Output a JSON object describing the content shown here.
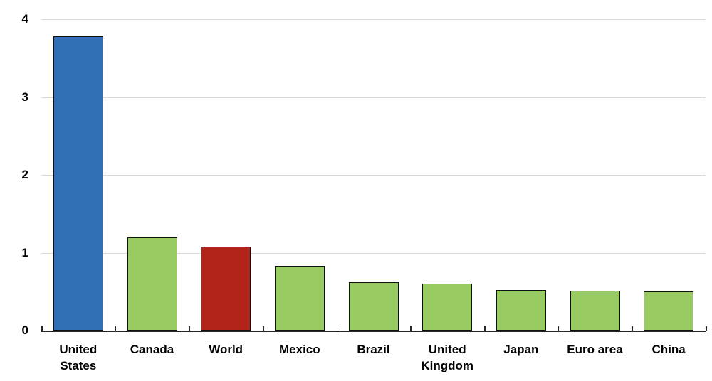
{
  "chart_data": {
    "type": "bar",
    "categories": [
      "United\nStates",
      "Canada",
      "World",
      "Mexico",
      "Brazil",
      "United\nKingdom",
      "Japan",
      "Euro area",
      "China"
    ],
    "values": [
      3.78,
      1.2,
      1.08,
      0.83,
      0.62,
      0.6,
      0.52,
      0.51,
      0.5
    ],
    "colors": [
      "#306eb6",
      "#97cb62",
      "#b2241a",
      "#97cb62",
      "#97cb62",
      "#97cb62",
      "#97cb62",
      "#97cb62",
      "#97cb62"
    ],
    "ylim": [
      0,
      4
    ],
    "yticks": [
      0,
      1,
      2,
      3,
      4
    ],
    "grid": "horizontal",
    "legend_position": "none",
    "style": {
      "highlight_blue": "#306eb6",
      "default_green": "#97cb62",
      "highlight_red": "#b2241a",
      "gridline_color": "#d9d9d9",
      "axis_color": "#262626",
      "bar_border_color": "#101010",
      "label_color": "#000000"
    }
  }
}
